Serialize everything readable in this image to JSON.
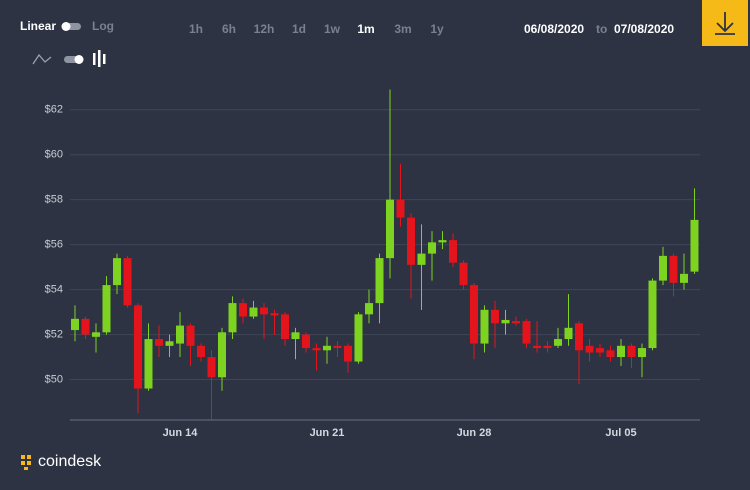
{
  "ui": {
    "scale_options": [
      "Linear",
      "Log"
    ],
    "ranges": [
      "1h",
      "6h",
      "12h",
      "1d",
      "1w",
      "1m",
      "3m",
      "1y"
    ],
    "selected_range": "1m",
    "date_from": "06/08/2020",
    "date_sep": "to",
    "date_to": "07/08/2020",
    "brand": "coindesk"
  },
  "chart_data": {
    "type": "candlestick",
    "categories": [
      null,
      null,
      null,
      null,
      null,
      null,
      null,
      null,
      null,
      null,
      "Jun 14",
      null,
      null,
      null,
      null,
      null,
      null,
      null,
      null,
      null,
      null,
      null,
      null,
      null,
      "Jun 21",
      null,
      null,
      null,
      null,
      null,
      null,
      null,
      null,
      null,
      null,
      null,
      null,
      null,
      "Jun 28",
      null,
      null,
      null,
      null,
      null,
      null,
      null,
      null,
      null,
      null,
      null,
      null,
      null,
      "Jul 05",
      null,
      null,
      null,
      null,
      null,
      null,
      null
    ],
    "open": [
      52.2,
      52.7,
      51.9,
      52.1,
      54.2,
      55.4,
      53.3,
      49.6,
      51.8,
      51.5,
      51.6,
      52.4,
      51.5,
      51.0,
      50.1,
      52.1,
      53.4,
      52.8,
      53.2,
      52.95,
      52.9,
      51.8,
      52.0,
      51.4,
      51.3,
      51.5,
      51.5,
      50.8,
      52.9,
      53.4,
      55.4,
      58.0,
      57.2,
      55.1,
      55.6,
      56.1,
      56.2,
      55.2,
      54.2,
      51.6,
      53.1,
      52.5,
      52.6,
      52.6,
      51.5,
      51.5,
      51.5,
      51.8,
      52.5,
      51.5,
      51.4,
      51.3,
      51.0,
      51.5,
      51.0,
      51.4,
      54.4,
      55.5,
      54.3,
      54.8
    ],
    "high": [
      53.3,
      52.8,
      52.5,
      54.6,
      55.6,
      55.5,
      53.4,
      52.5,
      52.4,
      52.0,
      53.0,
      52.5,
      51.6,
      51.3,
      52.3,
      53.7,
      53.6,
      53.5,
      53.4,
      53.1,
      53.0,
      52.3,
      52.1,
      51.6,
      51.9,
      51.7,
      51.6,
      53.0,
      54.0,
      55.6,
      62.9,
      59.6,
      57.4,
      56.9,
      56.6,
      56.6,
      56.5,
      55.3,
      54.3,
      53.3,
      53.5,
      53.1,
      52.8,
      52.7,
      52.6,
      51.7,
      52.3,
      53.8,
      52.6,
      51.8,
      51.6,
      51.5,
      51.8,
      51.6,
      51.6,
      54.5,
      55.9,
      55.6,
      55.6,
      58.5
    ],
    "low": [
      51.7,
      51.8,
      51.2,
      52.0,
      53.8,
      53.2,
      48.5,
      49.5,
      51.0,
      51.0,
      51.0,
      50.6,
      50.8,
      48.2,
      49.5,
      51.8,
      52.5,
      52.7,
      51.8,
      52.0,
      51.5,
      50.9,
      51.2,
      50.4,
      50.7,
      51.0,
      50.3,
      50.7,
      52.5,
      52.5,
      54.5,
      56.8,
      53.6,
      53.1,
      54.4,
      55.8,
      55.0,
      54.0,
      50.9,
      51.2,
      51.4,
      52.0,
      52.4,
      51.4,
      51.2,
      51.2,
      51.4,
      51.5,
      49.8,
      50.8,
      51.0,
      50.8,
      50.6,
      50.5,
      50.1,
      51.3,
      54.2,
      53.7,
      54.0,
      54.7
    ],
    "close": [
      52.7,
      52.0,
      52.1,
      54.2,
      55.4,
      53.3,
      49.6,
      51.8,
      51.5,
      51.7,
      52.4,
      51.5,
      51.0,
      50.1,
      52.1,
      53.4,
      52.8,
      53.2,
      52.9,
      52.85,
      51.8,
      52.1,
      51.4,
      51.3,
      51.5,
      51.4,
      50.8,
      52.9,
      53.4,
      55.4,
      58.0,
      57.2,
      55.1,
      55.6,
      56.1,
      56.2,
      55.2,
      54.2,
      51.6,
      53.1,
      52.5,
      52.65,
      52.5,
      51.6,
      51.4,
      51.4,
      51.8,
      52.3,
      51.3,
      51.2,
      51.2,
      51.0,
      51.5,
      51.0,
      51.4,
      54.4,
      55.5,
      54.3,
      54.7,
      57.1
    ],
    "up_color": "#7ed321",
    "down_color": "#e3141b",
    "ylim": [
      48.2,
      63.1
    ],
    "yticks": [
      {
        "value": 50,
        "label": "$50"
      },
      {
        "value": 52,
        "label": "$52"
      },
      {
        "value": 54,
        "label": "$54"
      },
      {
        "value": 56,
        "label": "$56"
      },
      {
        "value": 58,
        "label": "$58"
      },
      {
        "value": 60,
        "label": "$60"
      },
      {
        "value": 62,
        "label": "$62"
      }
    ],
    "grid": true
  }
}
